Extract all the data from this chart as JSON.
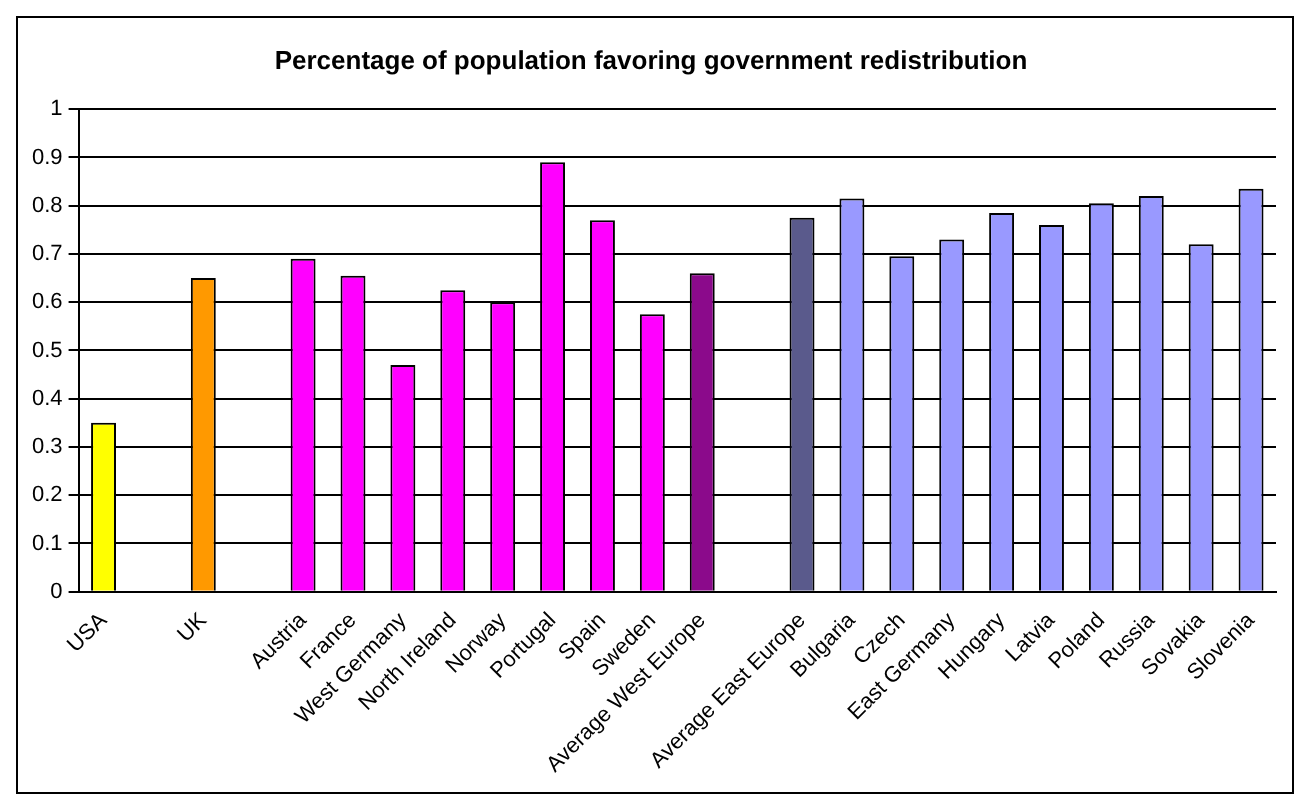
{
  "chart_data": {
    "type": "bar",
    "title": "Percentage of population favoring government redistribution",
    "categories": [
      "USA",
      null,
      "UK",
      null,
      "Austria",
      "France",
      "West Germany",
      "North Ireland",
      "Norway",
      "Portugal",
      "Spain",
      "Sweden",
      "Average West Europe",
      null,
      "Average East Europe",
      "Bulgaria",
      "Czech",
      "East Germany",
      "Hungary",
      "Latvia",
      "Poland",
      "Russia",
      "Sovakia",
      "Slovenia"
    ],
    "values": [
      0.35,
      null,
      0.65,
      null,
      0.69,
      0.655,
      0.47,
      0.625,
      0.6,
      0.89,
      0.77,
      0.575,
      0.66,
      null,
      0.775,
      0.815,
      0.695,
      0.73,
      0.785,
      0.76,
      0.805,
      0.82,
      0.72,
      0.835
    ],
    "colors": [
      "#ffff00",
      "#ffffff",
      "#ff9900",
      "#ffffff",
      "#ff00ff",
      "#ff00ff",
      "#ff00ff",
      "#ff00ff",
      "#ff00ff",
      "#ff00ff",
      "#ff00ff",
      "#ff00ff",
      "#8b0a8b",
      "#ffffff",
      "#5a5a8c",
      "#9999ff",
      "#9999ff",
      "#9999ff",
      "#9999ff",
      "#9999ff",
      "#9999ff",
      "#9999ff",
      "#9999ff",
      "#9999ff"
    ],
    "ylim": [
      0,
      1
    ],
    "yticks": [
      0,
      0.1,
      0.2,
      0.3,
      0.4,
      0.5,
      0.6,
      0.7,
      0.8,
      0.9,
      1
    ],
    "grid": "y",
    "legend": false
  }
}
